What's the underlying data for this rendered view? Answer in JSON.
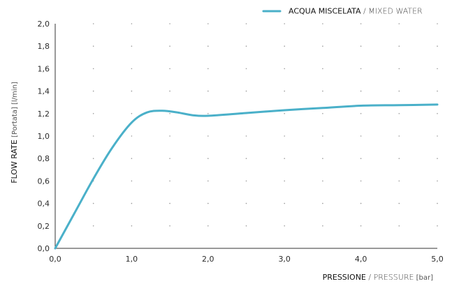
{
  "chart_data": {
    "type": "line",
    "legend": {
      "placement": "top-right",
      "name_main": "ACQUA MISCELATA",
      "name_sep": " / ",
      "name_alt": "MIXED WATER"
    },
    "xlabel": {
      "main": "PRESSIONE",
      "sep": " / ",
      "alt": "PRESSURE",
      "unit": " [bar]"
    },
    "ylabel": {
      "main": "FLOW RATE",
      "unit": " [Portata] [l/min]"
    },
    "xlim": [
      0,
      5
    ],
    "ylim": [
      0,
      2
    ],
    "xticks": [
      "0,0",
      "1,0",
      "2,0",
      "3,0",
      "4,0",
      "5,0"
    ],
    "yticks": [
      "0,0",
      "0,2",
      "0,4",
      "0,6",
      "0,8",
      "1,0",
      "1,2",
      "1,4",
      "1,6",
      "1,8",
      "2,0"
    ],
    "grid": "dotted",
    "series": [
      {
        "name": "ACQUA MISCELATA / MIXED WATER",
        "color": "#4ab0c9",
        "x": [
          0,
          0.25,
          0.5,
          0.75,
          1.0,
          1.2,
          1.4,
          1.6,
          1.8,
          2.0,
          2.5,
          3.0,
          3.5,
          4.0,
          4.5,
          5.0
        ],
        "y": [
          0,
          0.31,
          0.62,
          0.9,
          1.12,
          1.21,
          1.225,
          1.21,
          1.185,
          1.18,
          1.205,
          1.23,
          1.25,
          1.27,
          1.275,
          1.28
        ]
      }
    ]
  }
}
